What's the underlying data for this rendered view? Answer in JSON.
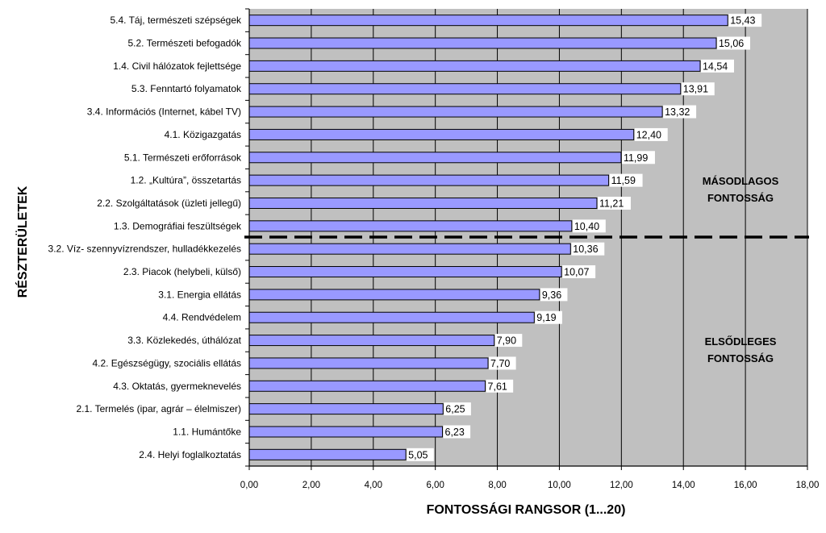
{
  "chart_data": {
    "type": "bar",
    "orientation": "horizontal",
    "title": "",
    "xlabel": "FONTOSSÁGI RANGSOR (1...20)",
    "ylabel": "RÉSZTERÜLETEK",
    "xlim": [
      0,
      18
    ],
    "xticks": [
      "0,00",
      "2,00",
      "4,00",
      "6,00",
      "8,00",
      "10,00",
      "12,00",
      "14,00",
      "16,00",
      "18,00"
    ],
    "grid": true,
    "categories": [
      "5.4. Táj, természeti szépségek",
      "5.2. Természeti befogadók",
      "1.4. Civil hálózatok fejlettsége",
      "5.3. Fenntartó folyamatok",
      "3.4. Információs (Internet, kábel TV)",
      "4.1. Közigazgatás",
      "5.1. Természeti erőforrások",
      "1.2. „Kultúra”, összetartás",
      "2.2. Szolgáltatások (üzleti jellegű)",
      "1.3. Demográfiai feszültségek",
      "3.2. Víz- szennyvízrendszer, hulladékkezelés",
      "2.3. Piacok (helybeli, külső)",
      "3.1. Energia ellátás",
      "4.4. Rendvédelem",
      "3.3. Közlekedés, úthálózat",
      "4.2. Egészségügy, szociális ellátás",
      "4.3. Oktatás, gyermeknevelés",
      "2.1. Termelés (ipar, agrár – élelmiszer)",
      "1.1. Humántőke",
      "2.4. Helyi foglalkoztatás"
    ],
    "values": [
      15.43,
      15.06,
      14.54,
      13.91,
      13.32,
      12.4,
      11.99,
      11.59,
      11.21,
      10.4,
      10.36,
      10.07,
      9.36,
      9.19,
      7.9,
      7.7,
      7.61,
      6.25,
      6.23,
      5.05
    ],
    "value_labels": [
      "15,43",
      "15,06",
      "14,54",
      "13,91",
      "13,32",
      "12,40",
      "11,99",
      "11,59",
      "11,21",
      "10,40",
      "10,36",
      "10,07",
      "9,36",
      "9,19",
      "7,90",
      "7,70",
      "7,61",
      "6,25",
      "6,23",
      "5,05"
    ],
    "annotations": {
      "secondary_line1": "MÁSODLAGOS",
      "secondary_line2": "FONTOSSÁG",
      "primary_line1": "ELSŐDLEGES",
      "primary_line2": "FONTOSSÁG"
    },
    "divider_after_category_index": 9,
    "colors": {
      "bar_fill": "#9999ff",
      "bar_stroke": "#000000",
      "plot_bg": "#c0c0c0",
      "grid": "#000000",
      "divider": "#000000"
    }
  }
}
